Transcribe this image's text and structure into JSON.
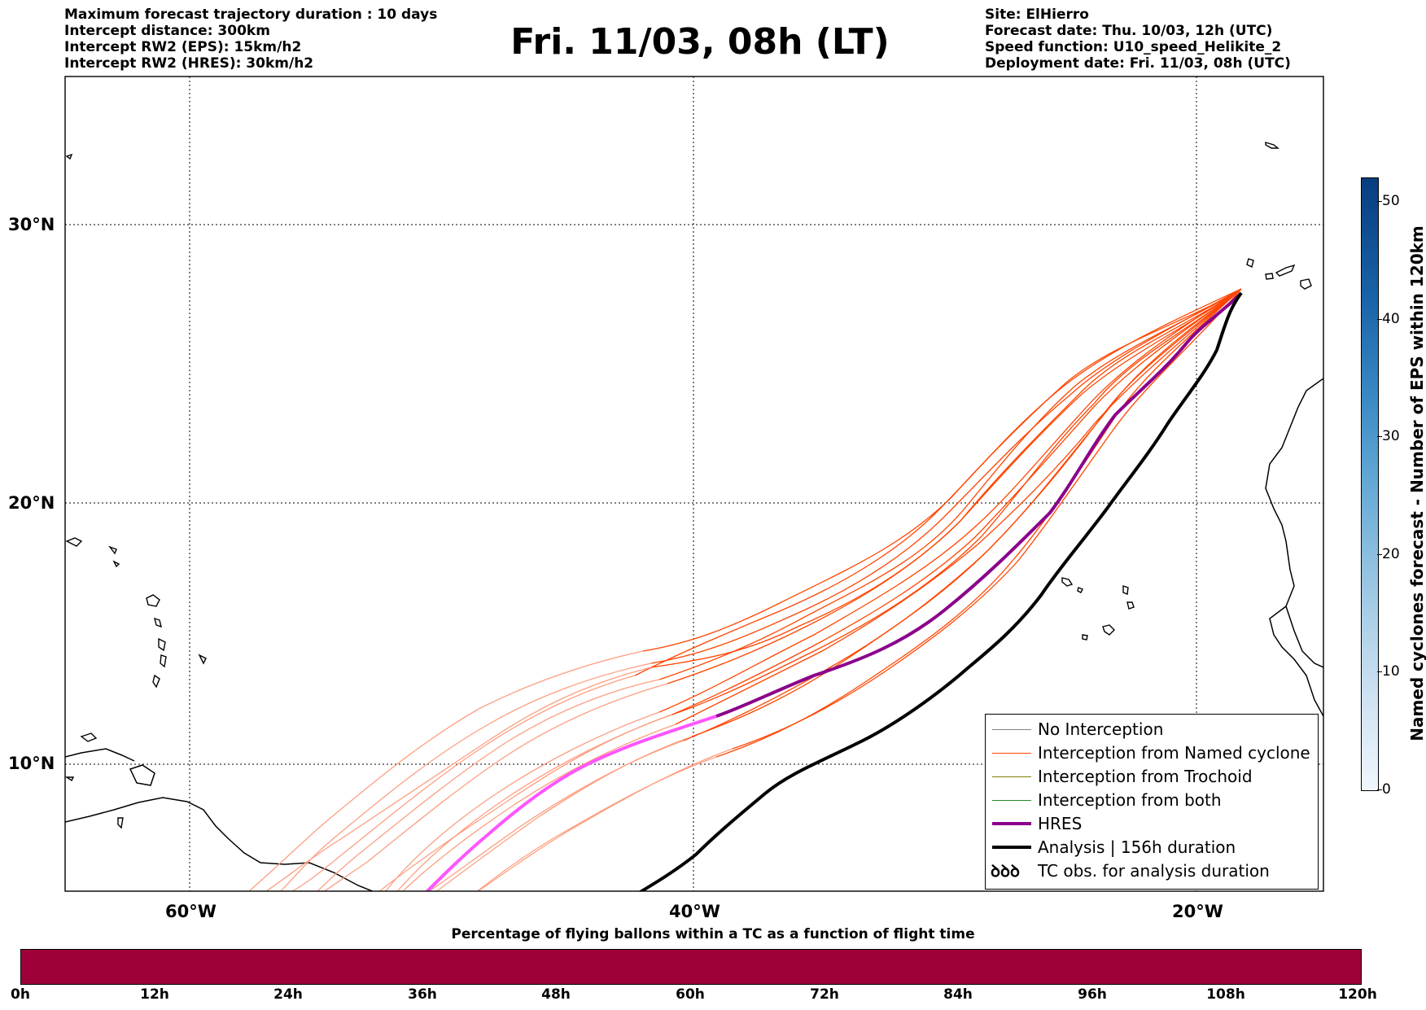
{
  "header_left": [
    "Maximum forecast trajectory duration : 10 days",
    "Intercept distance: 300km",
    "Intercept RW2 (EPS):  15km/h2",
    "Intercept RW2 (HRES): 30km/h2"
  ],
  "title": "Fri. 11/03, 08h (LT)",
  "header_right": [
    "Site: ElHierro",
    "Forecast date: Thu. 10/03, 12h (UTC)",
    "Speed function: U10_speed_Helikite_2",
    "Deployment date: Fri. 11/03, 08h (UTC)"
  ],
  "map": {
    "lon_range": [
      -65,
      -15
    ],
    "lat_range": [
      5.5,
      35
    ],
    "lon_labels": [
      "60°W",
      "40°W",
      "20°W"
    ],
    "lat_labels": [
      "30°N",
      "20°N",
      "10°N"
    ],
    "gridlines": "dotted"
  },
  "legend": {
    "placement": "lower-right",
    "entries": [
      {
        "label": "No Interception",
        "color": "#808080"
      },
      {
        "label": "Interception from Named cyclone",
        "color": "#ff4500"
      },
      {
        "label": "Interception from Trochoid",
        "color": "#808000"
      },
      {
        "label": "Interception from both",
        "color": "#228b22"
      },
      {
        "label": "HRES",
        "color": "#8b008b"
      },
      {
        "label": "Analysis | 156h duration",
        "color": "#000000"
      },
      {
        "label": "TC obs. for analysis duration",
        "icon": "cyclone-symbols-icon",
        "symbol": "ꝺꝺꝺ"
      }
    ]
  },
  "colorbar": {
    "label": "Named cyclones forecast - Number of EPS within 120km",
    "ticks": [
      "0",
      "10",
      "20",
      "30",
      "40",
      "50"
    ],
    "range": [
      0,
      52
    ]
  },
  "bottom_bar": {
    "title": "Percentage of flying ballons within a TC as a function of flight time",
    "color": "#9e0139",
    "ticks": [
      "0h",
      "12h",
      "24h",
      "36h",
      "48h",
      "60h",
      "72h",
      "84h",
      "96h",
      "108h",
      "120h"
    ]
  }
}
